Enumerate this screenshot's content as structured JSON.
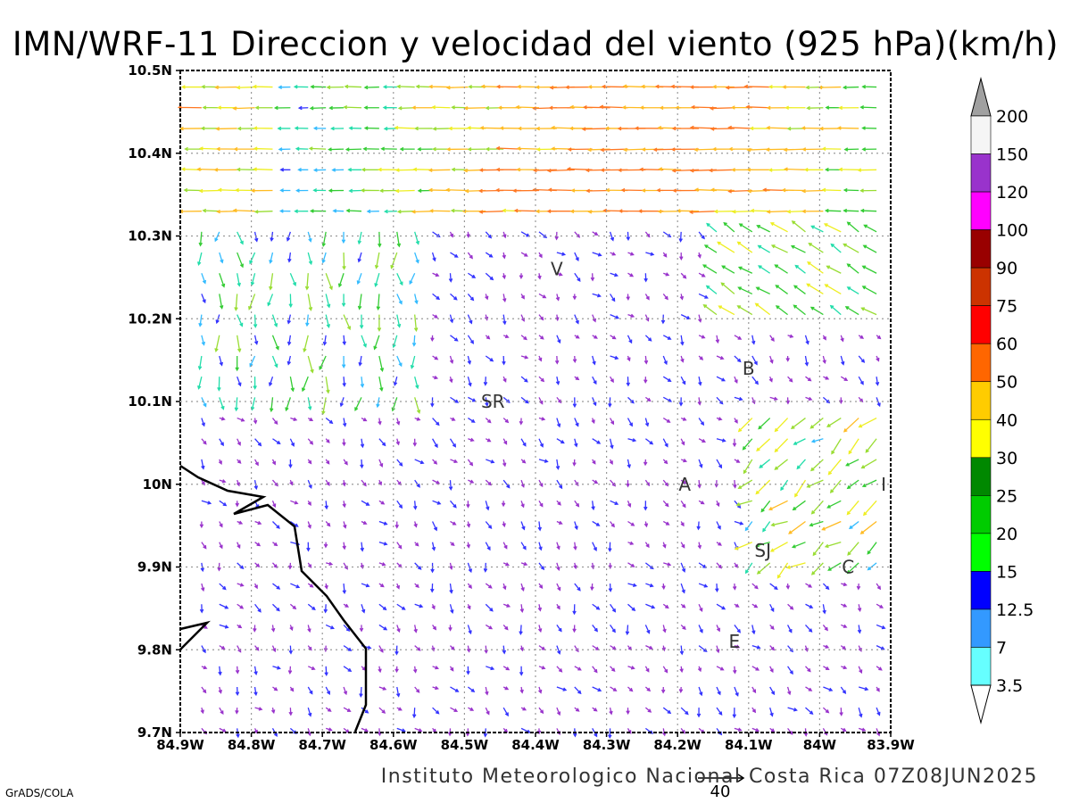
{
  "title": "IMN/WRF-11 Direccion y velocidad del viento (925 hPa)(km/h)",
  "footer": "Instituto Meteorologico Nacional Costa Rica 07Z08JUN2025",
  "credit": "GrADS/COLA",
  "reference_vector": {
    "label": "40",
    "speed": 40
  },
  "map": {
    "lon_range": [
      -84.9,
      -83.9
    ],
    "lat_range": [
      9.7,
      10.5
    ],
    "x_ticks": [
      "84.9W",
      "84.8W",
      "84.7W",
      "84.6W",
      "84.5W",
      "84.4W",
      "84.3W",
      "84.2W",
      "84.1W",
      "84W",
      "83.9W"
    ],
    "y_ticks": [
      "9.7N",
      "9.8N",
      "9.9N",
      "10N",
      "10.1N",
      "10.2N",
      "10.3N",
      "10.4N",
      "10.5N"
    ],
    "grid": true,
    "stations": [
      {
        "label": "V",
        "lon": -84.37,
        "lat": 10.26
      },
      {
        "label": "SR",
        "lon": -84.46,
        "lat": 10.1
      },
      {
        "label": "B",
        "lon": -84.1,
        "lat": 10.14
      },
      {
        "label": "A",
        "lon": -84.19,
        "lat": 10.0
      },
      {
        "label": "I",
        "lon": -83.91,
        "lat": 10.0
      },
      {
        "label": "SJ",
        "lon": -84.08,
        "lat": 9.92
      },
      {
        "label": "C",
        "lon": -83.96,
        "lat": 9.9
      },
      {
        "label": "E",
        "lon": -84.12,
        "lat": 9.81
      }
    ]
  },
  "colorbar": {
    "labels": [
      "200",
      "150",
      "120",
      "100",
      "90",
      "75",
      "60",
      "50",
      "40",
      "30",
      "25",
      "20",
      "15",
      "12.5",
      "7",
      "3.5"
    ],
    "colors": [
      "#a0a0a0",
      "#f5f5f5",
      "#9933cc",
      "#ff00ff",
      "#990000",
      "#cc3300",
      "#ff0000",
      "#ff6600",
      "#ffcc00",
      "#ffff00",
      "#008800",
      "#00cc00",
      "#00ff00",
      "#0000ff",
      "#3399ff",
      "#66ffff",
      "#ffffff"
    ]
  }
}
